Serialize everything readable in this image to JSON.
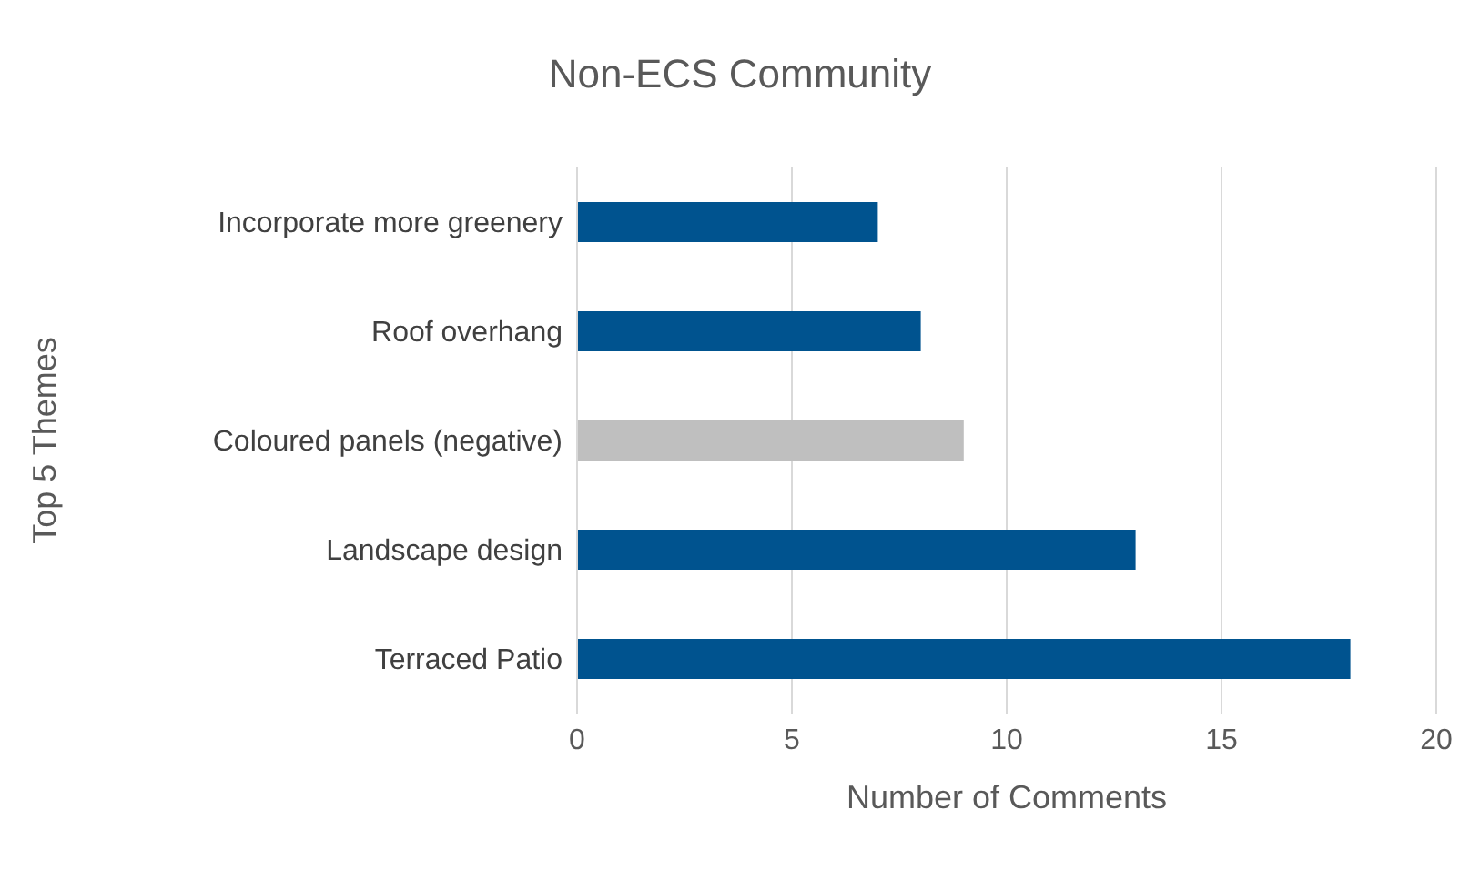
{
  "chart_data": {
    "type": "bar",
    "orientation": "horizontal",
    "title": "Non-ECS Community",
    "xlabel": "Number of Comments",
    "ylabel": "Top 5 Themes",
    "categories": [
      "Incorporate more greenery",
      "Roof overhang",
      "Coloured panels (negative)",
      "Landscape design",
      "Terraced Patio"
    ],
    "values": [
      7,
      8,
      9,
      13,
      18
    ],
    "colors": [
      "#00538f",
      "#00538f",
      "#bfbfbf",
      "#00538f",
      "#00538f"
    ],
    "xlim": [
      0,
      20
    ],
    "xticks": [
      0,
      5,
      10,
      15,
      20
    ],
    "grid": "x",
    "legend": false
  }
}
